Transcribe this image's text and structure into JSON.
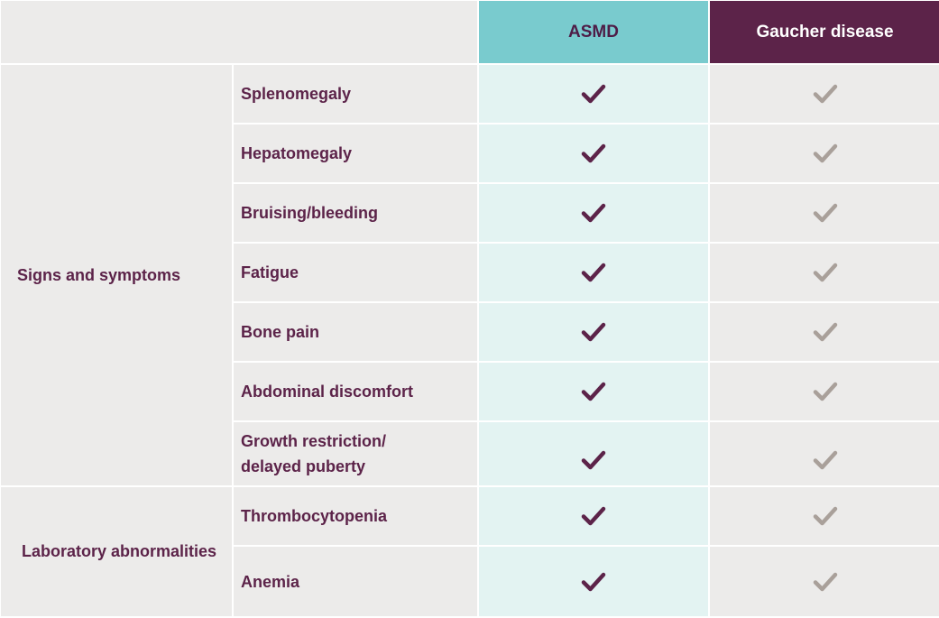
{
  "table": {
    "headers": {
      "asmd": "ASMD",
      "gaucher": "Gaucher disease"
    },
    "groups": [
      {
        "label": "Signs and symptoms"
      },
      {
        "label": "Laboratory abnormalities"
      }
    ],
    "rows": [
      {
        "label": "Splenomegaly",
        "asmd": true,
        "gaucher": true
      },
      {
        "label": "Hepatomegaly",
        "asmd": true,
        "gaucher": true
      },
      {
        "label": "Bruising/bleeding",
        "asmd": true,
        "gaucher": true
      },
      {
        "label": "Fatigue",
        "asmd": true,
        "gaucher": true
      },
      {
        "label": "Bone pain",
        "asmd": true,
        "gaucher": true
      },
      {
        "label": "Abdominal discomfort",
        "asmd": true,
        "gaucher": true
      },
      {
        "label": "Growth restriction/\ndelayed puberty",
        "asmd": true,
        "gaucher": true
      },
      {
        "label": "Thrombocytopenia",
        "asmd": true,
        "gaucher": true
      },
      {
        "label": "Anemia",
        "asmd": true,
        "gaucher": true
      }
    ]
  },
  "colors": {
    "asmd_header": "#79cbce",
    "gaucher_header": "#5c2349",
    "asmd_column": "#e3f3f2",
    "cell_background": "#ecebea",
    "check_asmd": "#5c2349",
    "check_gaucher": "#a9a09a",
    "text": "#5c2349"
  },
  "icons": {
    "asmd_mark": "checkmark-icon",
    "gaucher_mark": "checkmark-icon"
  }
}
